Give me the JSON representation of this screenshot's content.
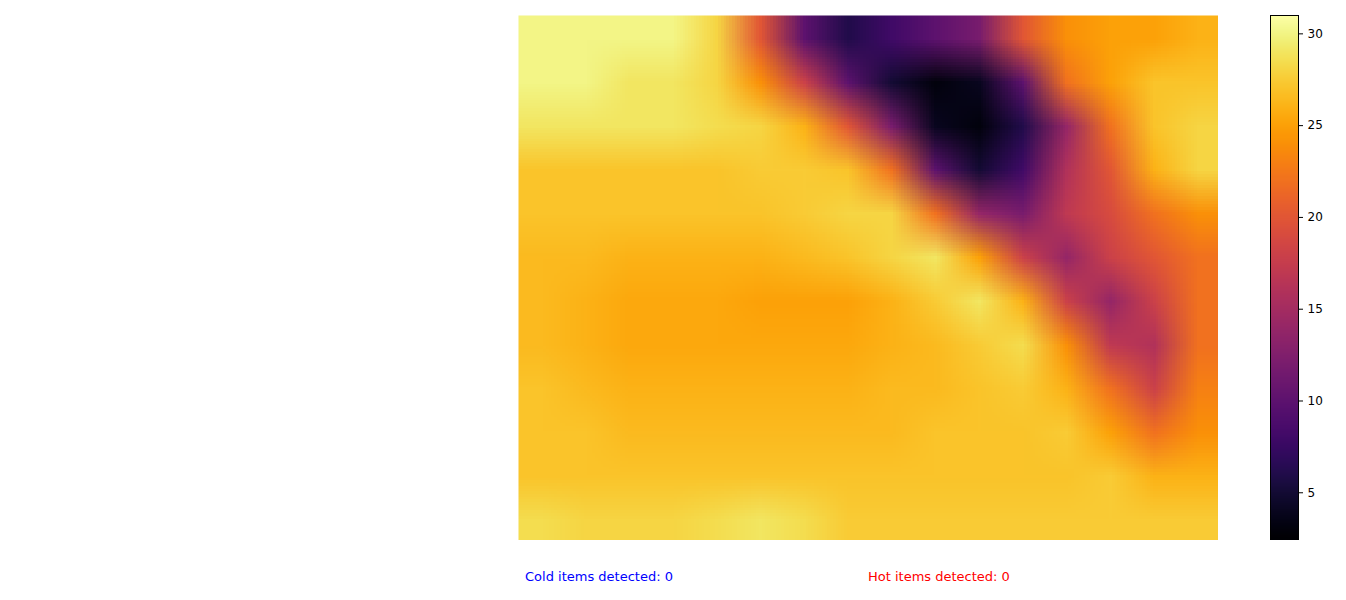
{
  "chart_data": {
    "type": "heatmap",
    "color": "inferno",
    "tick_labels": false,
    "cells": [
      [
        30,
        30,
        30,
        30,
        28,
        20,
        10,
        6,
        8,
        10,
        12,
        20,
        24,
        25,
        25,
        26
      ],
      [
        30,
        30,
        29,
        29,
        28,
        24,
        18,
        10,
        5,
        3,
        4,
        10,
        22,
        25,
        27,
        27
      ],
      [
        29,
        29,
        29,
        29,
        28.5,
        28,
        26,
        20,
        12,
        4,
        3,
        6,
        14,
        22,
        27,
        28
      ],
      [
        27,
        27,
        27,
        27,
        27,
        27.5,
        27.5,
        27,
        22,
        10,
        5,
        8,
        16,
        20,
        26,
        28
      ],
      [
        27,
        27,
        27,
        27,
        27,
        27,
        27.5,
        28,
        28,
        22,
        14,
        12,
        17,
        19,
        22,
        24
      ],
      [
        26.5,
        26.5,
        26,
        26,
        26,
        26,
        26.5,
        27,
        28,
        29,
        25,
        18,
        14,
        18,
        20,
        22
      ],
      [
        26.5,
        26,
        25.5,
        25.5,
        25.5,
        25,
        25,
        25,
        26,
        27.5,
        29,
        26,
        18,
        14,
        18,
        22
      ],
      [
        26.5,
        26,
        25.5,
        25.5,
        25.5,
        25.5,
        25.5,
        25.5,
        26,
        26.5,
        27.5,
        28.5,
        24,
        17,
        16,
        22
      ],
      [
        27,
        26.5,
        26,
        26,
        26,
        26,
        26,
        26,
        26.5,
        26.5,
        27,
        27.5,
        26,
        22,
        18,
        23
      ],
      [
        27,
        27,
        26.5,
        26.5,
        26.5,
        26.5,
        26.5,
        26.5,
        26.5,
        27,
        27,
        27,
        27.5,
        25,
        22,
        24
      ],
      [
        27,
        27,
        27,
        27,
        27,
        27,
        27,
        27,
        27,
        27,
        27,
        27,
        27,
        27.5,
        26,
        26
      ],
      [
        28.5,
        28,
        28,
        28,
        28.5,
        29,
        28.5,
        27.5,
        27.5,
        27.5,
        27.5,
        27.5,
        27.5,
        27.5,
        27.5,
        27.5
      ]
    ],
    "colorbar": {
      "range": [
        2.4,
        31
      ],
      "ticks": [
        5,
        10,
        15,
        20,
        25,
        30
      ]
    },
    "annotations": [
      {
        "text": "Cold items detected: 0",
        "color": "blue"
      },
      {
        "text": "Hot items detected: 0",
        "color": "red"
      }
    ]
  }
}
